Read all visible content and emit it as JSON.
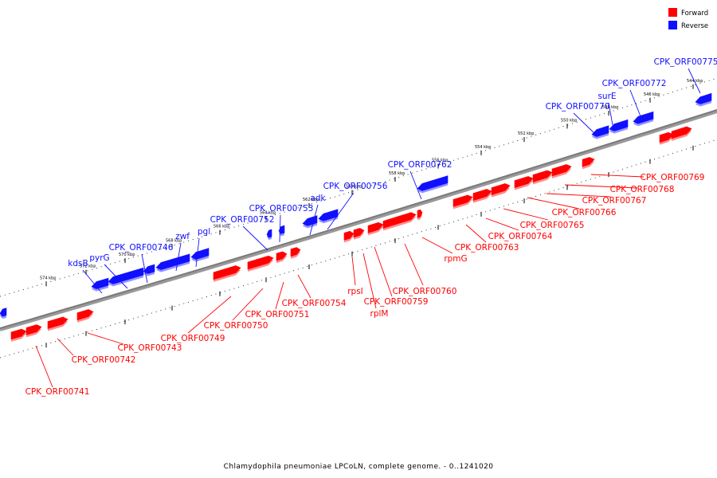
{
  "legend": {
    "forward_label": "Forward",
    "reverse_label": "Reverse",
    "forward_color": "#ff0000",
    "reverse_color": "#1010ff"
  },
  "caption": "Chlamydophila pneumoniae LPCoLN, complete genome. - 0..1241020",
  "ticks": [
    "544 kbp",
    "546 kbp",
    "548 kbp",
    "550 kbp",
    "552 kbp",
    "554 kbp",
    "556 kbp",
    "558 kbp",
    "560 kbp",
    "562 kbp",
    "564 kbp",
    "566 kbp",
    "568 kbp",
    "570 kbp",
    "572 kbp",
    "574 kbp"
  ],
  "forward_labels": [
    "CPK_ORF00741",
    "CPK_ORF00742",
    "CPK_ORF00743",
    "CPK_ORF00749",
    "CPK_ORF00750",
    "CPK_ORF00751",
    "CPK_ORF00754",
    "rpsI",
    "rplM",
    "CPK_ORF00759",
    "CPK_ORF00760",
    "rpmG",
    "CPK_ORF00763",
    "CPK_ORF00764",
    "CPK_ORF00765",
    "CPK_ORF00766",
    "CPK_ORF00767",
    "CPK_ORF00768",
    "CPK_ORF00769"
  ],
  "reverse_labels": [
    "kdsB",
    "pyrG",
    "CPK_ORF00746",
    "zwf",
    "pgl",
    "CPK_ORF00752",
    "CPK_ORF00753",
    "adk",
    "CPK_ORF00756",
    "CPK_ORF00762",
    "CPK_ORF00770",
    "surE",
    "CPK_ORF00772",
    "CPK_ORF00775"
  ]
}
